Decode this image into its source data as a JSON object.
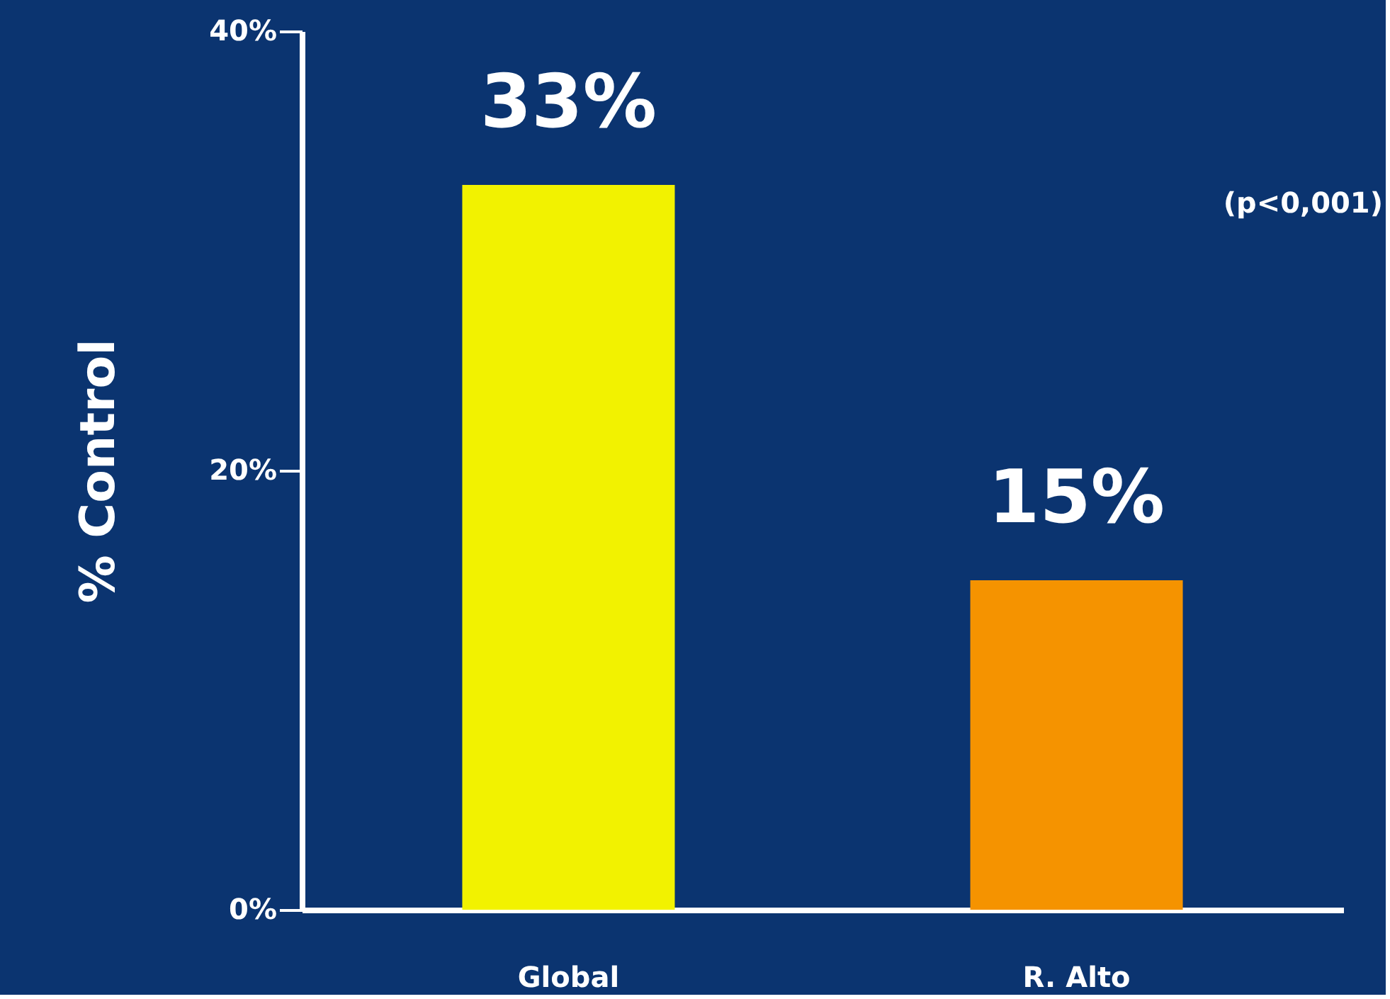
{
  "chart_data": {
    "type": "bar",
    "ylabel": "% Control",
    "categories": [
      "Global",
      "R. Alto"
    ],
    "values": [
      33,
      15
    ],
    "colors": [
      "#f2f200",
      "#f59300"
    ],
    "value_labels": [
      "33%",
      "15%"
    ],
    "ylim": [
      0,
      40
    ],
    "yticks": [
      {
        "value": 0,
        "label": "0%"
      },
      {
        "value": 20,
        "label": "20%"
      },
      {
        "value": 40,
        "label": "40%"
      }
    ],
    "grid": false,
    "annotations": [
      "(p<0,001)"
    ]
  }
}
